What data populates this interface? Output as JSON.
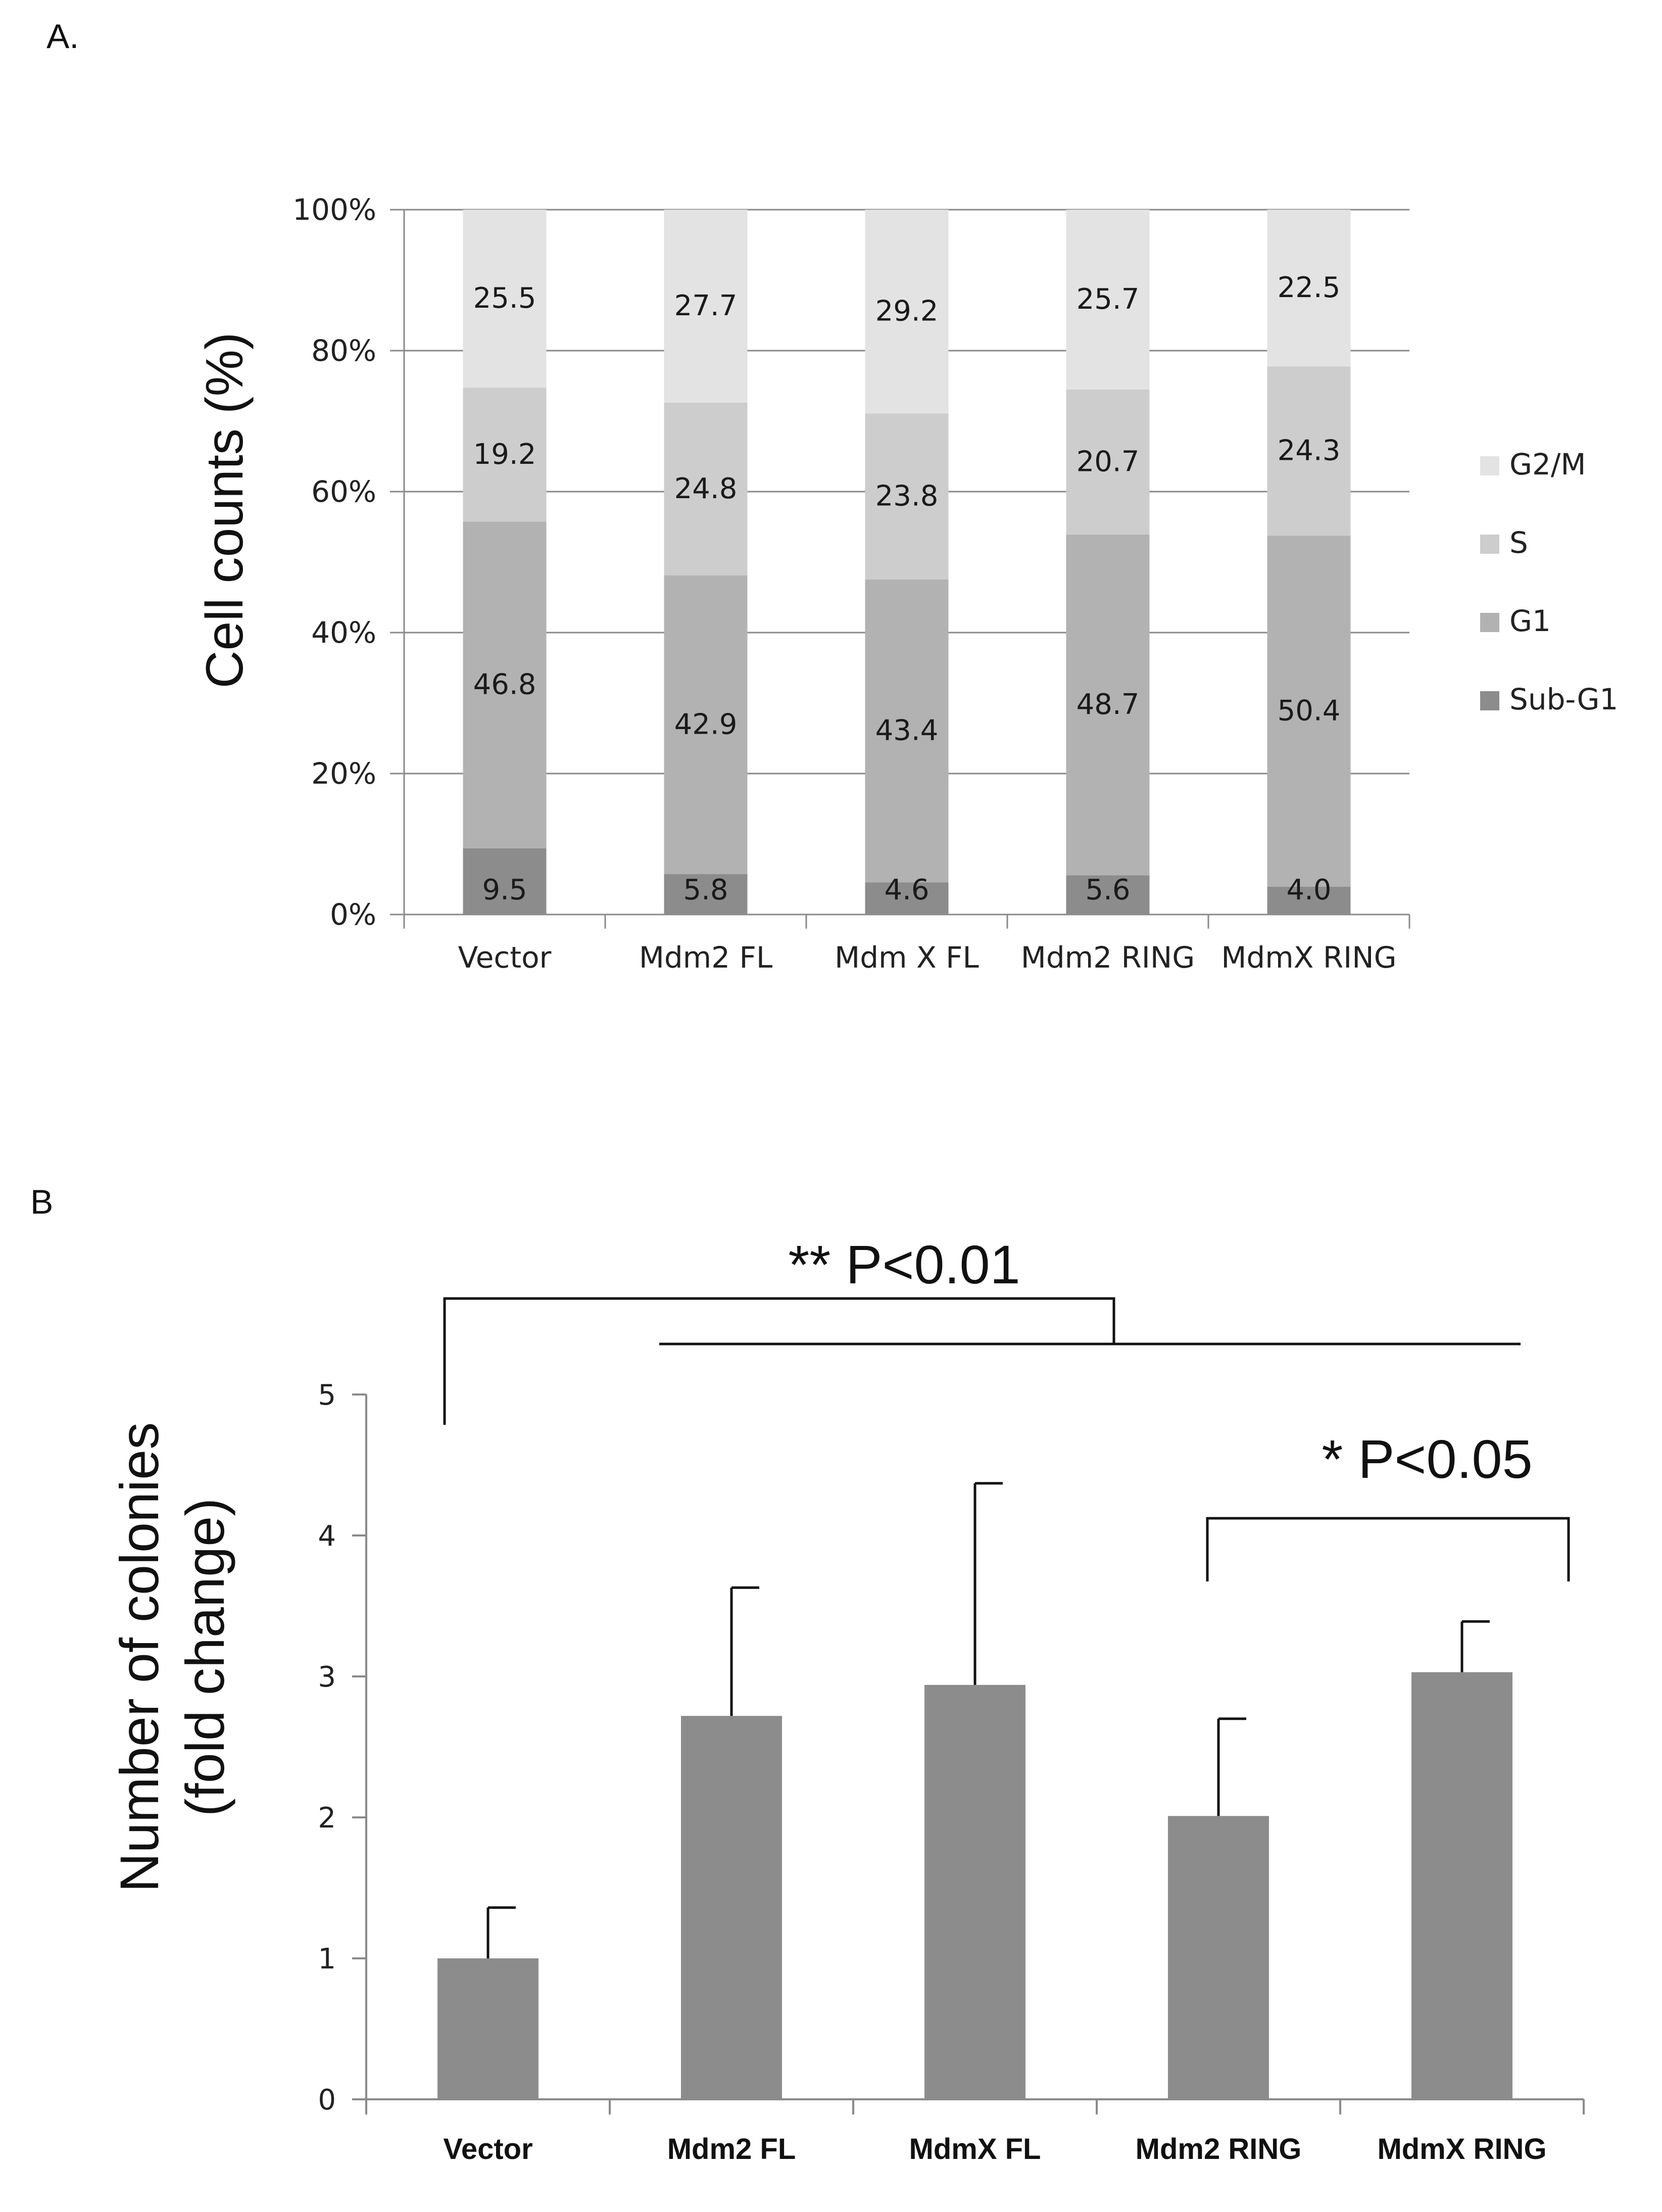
{
  "panel_a_label": "A.",
  "panel_b_label": "B",
  "chart_data": [
    {
      "type": "bar",
      "stacked": true,
      "percent_stacked": true,
      "title": "",
      "xlabel": "",
      "ylabel": "Cell counts (%)",
      "ylim": [
        0,
        100
      ],
      "y_ticks": [
        "0%",
        "20%",
        "40%",
        "60%",
        "80%",
        "100%"
      ],
      "categories": [
        "Vector",
        "Mdm2 FL",
        "Mdm X FL",
        "Mdm2 RING",
        "MdmX RING"
      ],
      "series": [
        {
          "name": "Sub-G1",
          "color": "#8c8c8c",
          "values": [
            9.5,
            5.8,
            4.6,
            5.6,
            4.0
          ],
          "labels": [
            "9.5",
            "5.8",
            "4.6",
            "5.6",
            "4.0"
          ]
        },
        {
          "name": "G1",
          "color": "#b2b2b2",
          "values": [
            46.8,
            42.9,
            43.4,
            48.7,
            50.4
          ],
          "labels": [
            "46.8",
            "42.9",
            "43.4",
            "48.7",
            "50.4"
          ]
        },
        {
          "name": "S",
          "color": "#cdcdcd",
          "values": [
            19.2,
            24.8,
            23.8,
            20.7,
            24.3
          ],
          "labels": [
            "19.2",
            "24.8",
            "23.8",
            "20.7",
            "24.3"
          ]
        },
        {
          "name": "G2/M",
          "color": "#e3e3e3",
          "values": [
            25.5,
            27.7,
            29.2,
            25.7,
            22.5
          ],
          "labels": [
            "25.5",
            "27.7",
            "29.2",
            "25.7",
            "22.5"
          ]
        }
      ],
      "legend": [
        "G2/M",
        "S",
        "G1",
        "Sub-G1"
      ],
      "legend_position": "right",
      "grid": true
    },
    {
      "type": "bar",
      "title": "",
      "xlabel": "",
      "ylabel_lines": [
        "Number of colonies",
        "(fold change)"
      ],
      "ylim": [
        0,
        5
      ],
      "y_ticks": [
        "0",
        "1",
        "2",
        "3",
        "4",
        "5"
      ],
      "categories": [
        "Vector",
        "Mdm2 FL",
        "MdmX FL",
        "Mdm2 RING",
        "MdmX RING"
      ],
      "values": [
        1.0,
        2.72,
        2.94,
        2.01,
        3.03
      ],
      "error_upper": [
        1.36,
        3.63,
        4.37,
        2.7,
        3.39
      ],
      "bar_color": "#8c8c8c",
      "grid": false,
      "annotations": [
        {
          "text": "** P<0.01",
          "groups": [
            "Vector",
            "Mdm2 FL|MdmX FL|Mdm2 RING|MdmX RING"
          ]
        },
        {
          "text": "* P<0.05",
          "groups": [
            "Mdm2 RING",
            "MdmX RING"
          ]
        }
      ]
    }
  ]
}
